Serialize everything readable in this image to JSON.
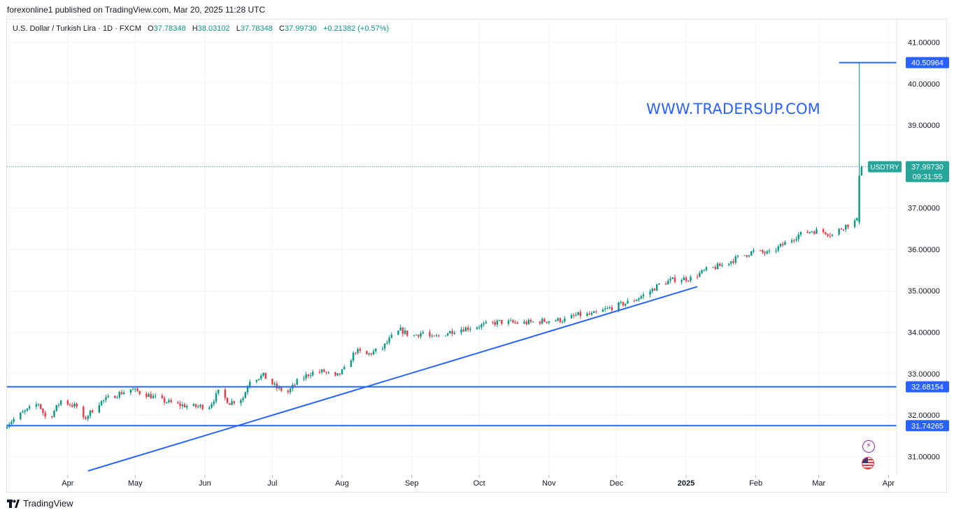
{
  "header": {
    "published_text": "forexonline1 published on TradingView.com, Mar 20, 2025 11:28 UTC"
  },
  "legend": {
    "symbol_line": "U.S. Dollar / Turkish Lira · 1D · FXCM",
    "open_key": "O",
    "open": "37.78348",
    "high_key": "H",
    "high": "38.03102",
    "low_key": "L",
    "low": "37.78348",
    "close_key": "C",
    "close": "37.99730",
    "change": "+0.21382 (+0.57%)"
  },
  "watermark": "WWW.TRADERSUP.COM",
  "footer": {
    "brand": "TradingView"
  },
  "colors": {
    "up": "#089981",
    "down": "#f23645",
    "drawing": "#2962ff",
    "grid": "#f0f3fa",
    "axis_text": "#131722",
    "price_tag": "#26a69a"
  },
  "icons": [
    "flash-icon",
    "us-flag-icon",
    "tradingview-logo-icon"
  ],
  "chart_data": {
    "type": "candlestick",
    "symbol": "USDTRY",
    "last_price": "37.99730",
    "countdown": "09:31:55",
    "y_ticks": [
      "41.00000",
      "40.00000",
      "39.00000",
      "38.00000",
      "37.00000",
      "36.00000",
      "35.00000",
      "34.00000",
      "33.00000",
      "32.00000",
      "31.00000"
    ],
    "ylim": [
      30.55,
      41.55
    ],
    "x_ticks": [
      "Apr",
      "May",
      "Jun",
      "Jul",
      "Aug",
      "Sep",
      "Oct",
      "Nov",
      "Dec",
      "2025",
      "Feb",
      "Mar",
      "Apr"
    ],
    "x_tick_dates": [
      "2024-04-01",
      "2024-05-01",
      "2024-06-01",
      "2024-07-01",
      "2024-08-01",
      "2024-09-01",
      "2024-10-01",
      "2024-11-01",
      "2024-12-01",
      "2025-01-01",
      "2025-02-01",
      "2025-03-01",
      "2025-04-01"
    ],
    "x_range": [
      "2024-03-05",
      "2025-04-04"
    ],
    "grid": true,
    "horizontal_lines": [
      {
        "price": "40.50964",
        "start": "2025-03-10"
      },
      {
        "price": "32.68154",
        "start": "2024-03-05"
      },
      {
        "price": "31.74265",
        "start": "2024-03-05"
      }
    ],
    "trendline": {
      "start": [
        "2024-04-10",
        30.65
      ],
      "end": [
        "2025-01-06",
        35.1
      ]
    },
    "path": [
      [
        "2024-03-05",
        31.78
      ],
      [
        "2024-03-12",
        32.05
      ],
      [
        "2024-03-19",
        32.28
      ],
      [
        "2024-03-23",
        31.85
      ],
      [
        "2024-03-29",
        32.35
      ],
      [
        "2024-04-05",
        32.2
      ],
      [
        "2024-04-08",
        31.88
      ],
      [
        "2024-04-15",
        32.3
      ],
      [
        "2024-04-22",
        32.48
      ],
      [
        "2024-04-29",
        32.62
      ],
      [
        "2024-05-06",
        32.5
      ],
      [
        "2024-05-13",
        32.35
      ],
      [
        "2024-05-20",
        32.25
      ],
      [
        "2024-05-27",
        32.2
      ],
      [
        "2024-06-03",
        32.22
      ],
      [
        "2024-06-07",
        32.55
      ],
      [
        "2024-06-12",
        32.3
      ],
      [
        "2024-06-18",
        32.42
      ],
      [
        "2024-06-21",
        32.85
      ],
      [
        "2024-06-27",
        32.95
      ],
      [
        "2024-07-03",
        32.65
      ],
      [
        "2024-07-08",
        32.55
      ],
      [
        "2024-07-12",
        32.8
      ],
      [
        "2024-07-18",
        33.02
      ],
      [
        "2024-07-24",
        33.05
      ],
      [
        "2024-07-29",
        32.9
      ],
      [
        "2024-08-02",
        33.1
      ],
      [
        "2024-08-07",
        33.55
      ],
      [
        "2024-08-12",
        33.45
      ],
      [
        "2024-08-19",
        33.62
      ],
      [
        "2024-08-23",
        33.88
      ],
      [
        "2024-08-27",
        34.05
      ],
      [
        "2024-09-01",
        33.9
      ],
      [
        "2024-09-06",
        34.0
      ],
      [
        "2024-09-10",
        33.85
      ],
      [
        "2024-09-20",
        34.05
      ],
      [
        "2024-10-01",
        34.15
      ],
      [
        "2024-10-10",
        34.25
      ],
      [
        "2024-10-20",
        34.22
      ],
      [
        "2024-10-31",
        34.28
      ],
      [
        "2024-11-08",
        34.3
      ],
      [
        "2024-11-14",
        34.42
      ],
      [
        "2024-11-20",
        34.42
      ],
      [
        "2024-11-30",
        34.62
      ],
      [
        "2024-12-08",
        34.75
      ],
      [
        "2024-12-15",
        34.95
      ],
      [
        "2024-12-20",
        35.15
      ],
      [
        "2024-12-27",
        35.28
      ],
      [
        "2025-01-03",
        35.3
      ],
      [
        "2025-01-10",
        35.5
      ],
      [
        "2025-01-17",
        35.62
      ],
      [
        "2025-01-24",
        35.8
      ],
      [
        "2025-01-31",
        35.95
      ],
      [
        "2025-02-07",
        35.9
      ],
      [
        "2025-02-14",
        36.15
      ],
      [
        "2025-02-20",
        36.35
      ],
      [
        "2025-02-26",
        36.45
      ],
      [
        "2025-03-04",
        36.42
      ],
      [
        "2025-03-07",
        36.35
      ],
      [
        "2025-03-12",
        36.55
      ],
      [
        "2025-03-18",
        36.7
      ]
    ],
    "special_candles": [
      {
        "date": "2025-03-19",
        "open": 36.65,
        "high": 40.50964,
        "low": 36.6,
        "close": 37.78
      },
      {
        "date": "2025-03-20",
        "open": 37.78348,
        "high": 38.03102,
        "low": 37.78348,
        "close": 37.9973
      }
    ]
  }
}
